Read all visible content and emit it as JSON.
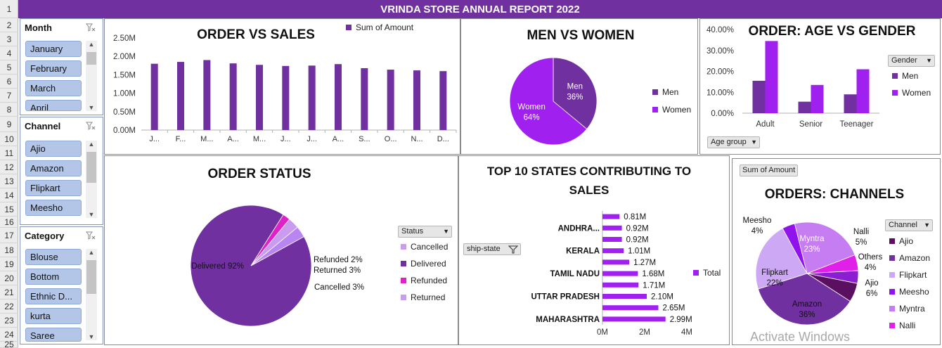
{
  "row_numbers": [
    "1",
    "2",
    "3",
    "4",
    "5",
    "6",
    "7",
    "8",
    "9",
    "10",
    "11",
    "12",
    "13",
    "14",
    "15",
    "16",
    "17",
    "18",
    "19",
    "20",
    "21",
    "22",
    "23",
    "24",
    "25"
  ],
  "banner": "VRINDA STORE ANNUAL REPORT 2022",
  "slicers": {
    "month": {
      "header": "Month",
      "items": [
        "January",
        "February",
        "March",
        "April"
      ]
    },
    "channel": {
      "header": "Channel",
      "items": [
        "Ajio",
        "Amazon",
        "Flipkart",
        "Meesho"
      ]
    },
    "category": {
      "header": "Category",
      "items": [
        "Blouse",
        "Bottom",
        "Ethnic D...",
        "kurta",
        "Saree"
      ]
    }
  },
  "colors": {
    "purple": "#7030a0",
    "violet": "#a020f0",
    "magenta": "#e020c8",
    "lilac": "#c99cf0",
    "dark": "#5b0f60",
    "banner": "#7030a0",
    "slicer_item": "#b4c6e7"
  },
  "watermark": "Activate Windows",
  "chart_data": [
    {
      "id": "order-vs-sales",
      "type": "bar",
      "title": "ORDER VS SALES",
      "legend": [
        "Sum of Amount"
      ],
      "legend_position": "top-right",
      "categories": [
        "J...",
        "F...",
        "M...",
        "A...",
        "M...",
        "J...",
        "J...",
        "A...",
        "S...",
        "O...",
        "N...",
        "D..."
      ],
      "values": [
        1.8,
        1.85,
        1.9,
        1.81,
        1.77,
        1.74,
        1.75,
        1.79,
        1.68,
        1.64,
        1.62,
        1.6
      ],
      "unit": "M",
      "yticks": [
        "0.00M",
        "0.50M",
        "1.00M",
        "1.50M",
        "2.00M",
        "2.50M"
      ],
      "ylim": [
        0,
        2.5
      ],
      "grid": false,
      "color": "#7030a0"
    },
    {
      "id": "men-vs-women",
      "type": "pie",
      "title": "MEN VS WOMEN",
      "legend_position": "right",
      "slices": [
        {
          "name": "Men",
          "value": 36,
          "label": "36%",
          "color": "#7030a0"
        },
        {
          "name": "Women",
          "value": 64,
          "label": "64%",
          "color": "#a020f0"
        }
      ]
    },
    {
      "id": "age-vs-gender",
      "type": "bar",
      "title": "ORDER: AGE VS GENDER",
      "filter_button": "Gender",
      "axis_button": "Age group",
      "legend_position": "right",
      "categories": [
        "Adult",
        "Senior",
        "Teenager"
      ],
      "series": [
        {
          "name": "Men",
          "values": [
            15.5,
            5.5,
            9
          ],
          "color": "#7030a0"
        },
        {
          "name": "Women",
          "values": [
            34.5,
            13.5,
            21
          ],
          "color": "#a020f0"
        }
      ],
      "yticks": [
        "0.00%",
        "10.00%",
        "20.00%",
        "30.00%",
        "40.00%"
      ],
      "ylim": [
        0,
        40
      ]
    },
    {
      "id": "order-status",
      "type": "pie",
      "title": "ORDER STATUS",
      "filter_button": "Status",
      "legend_position": "right",
      "slices": [
        {
          "name": "Delivered",
          "value": 92,
          "label": "Delivered 92%",
          "color": "#7030a0"
        },
        {
          "name": "Refunded",
          "value": 2,
          "label": "Refunded  2%",
          "color": "#e020c8"
        },
        {
          "name": "Returned",
          "value": 3,
          "label": "Returned  3%",
          "color": "#c99cf0"
        },
        {
          "name": "Cancelled",
          "value": 3,
          "label": "Cancelled 3%",
          "color": "#b985f0"
        }
      ],
      "legend": [
        "Cancelled",
        "Delivered",
        "Refunded",
        "Returned"
      ]
    },
    {
      "id": "top-states",
      "type": "bar",
      "orientation": "horizontal",
      "title_lines": [
        "TOP  10 STATES  CONTRIBUTING TO",
        "SALES"
      ],
      "filter_button": "ship-state",
      "legend": [
        "Total"
      ],
      "legend_position": "right",
      "values": [
        2.99,
        2.65,
        2.1,
        1.71,
        1.68,
        1.27,
        1.01,
        0.92,
        0.92,
        0.81
      ],
      "value_labels": [
        "2.99M",
        "2.65M",
        "2.10M",
        "1.71M",
        "1.68M",
        "1.27M",
        "1.01M",
        "0.92M",
        "0.92M",
        "0.81M"
      ],
      "category_labels": [
        "MAHARASHTRA",
        "",
        "UTTAR PRADESH",
        "",
        "TAMIL NADU",
        "",
        "KERALA",
        "",
        "ANDHRA...",
        ""
      ],
      "xticks": [
        "0M",
        "2M",
        "4M"
      ],
      "xlim": [
        0,
        4
      ],
      "color": "#a020f0"
    },
    {
      "id": "orders-channels",
      "type": "pie",
      "title": "ORDERS: CHANNELS",
      "value_button": "Sum of Amount",
      "filter_button": "Channel",
      "legend_position": "right",
      "slices": [
        {
          "name": "Myntra",
          "value": 23,
          "label_name": "Myntra",
          "label_pct": "23%",
          "color": "#c77df2"
        },
        {
          "name": "Nalli",
          "value": 5,
          "label_name": "Nalli",
          "label_pct": "5%",
          "color": "#e020e8"
        },
        {
          "name": "Others",
          "value": 4,
          "label_name": "Others",
          "label_pct": "4%",
          "color": "#8a1ed0"
        },
        {
          "name": "Ajio",
          "value": 6,
          "label_name": "Ajio",
          "label_pct": "6%",
          "color": "#5b0f60"
        },
        {
          "name": "Amazon",
          "value": 36,
          "label_name": "Amazon",
          "label_pct": "36%",
          "color": "#7030a0"
        },
        {
          "name": "Flipkart",
          "value": 22,
          "label_name": "Flipkart",
          "label_pct": "22%",
          "color": "#cda8f4"
        },
        {
          "name": "Meesho",
          "value": 4,
          "label_name": "Meesho",
          "label_pct": "4%",
          "color": "#9012ec"
        }
      ],
      "legend": [
        {
          "name": "Ajio",
          "color": "#5b0f60"
        },
        {
          "name": "Amazon",
          "color": "#7030a0"
        },
        {
          "name": "Flipkart",
          "color": "#cda8f4"
        },
        {
          "name": "Meesho",
          "color": "#9012ec"
        },
        {
          "name": "Myntra",
          "color": "#c77df2"
        },
        {
          "name": "Nalli",
          "color": "#e020e8"
        }
      ]
    }
  ]
}
